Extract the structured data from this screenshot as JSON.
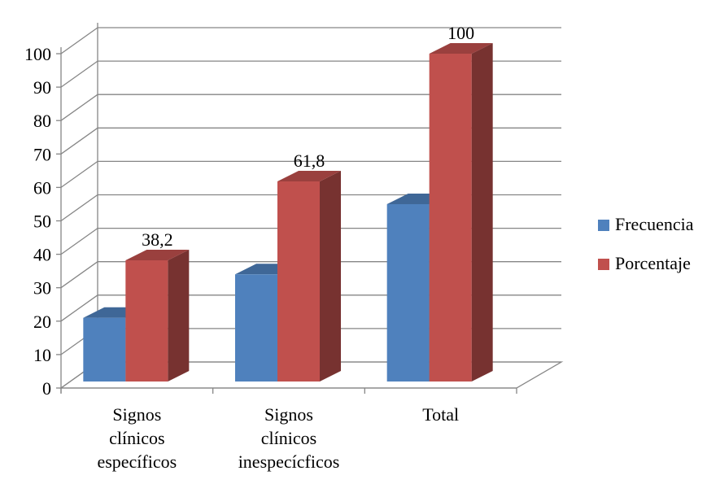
{
  "chart_data": {
    "type": "bar",
    "categories": [
      [
        "Signos",
        "clínicos",
        "específicos"
      ],
      [
        "Signos",
        "clínicos",
        "inespecícficos"
      ],
      [
        "Total"
      ]
    ],
    "series": [
      {
        "name": "Frecuencia",
        "values": [
          21,
          34,
          55
        ],
        "color": "#4f81bd"
      },
      {
        "name": "Porcentaje",
        "values": [
          38.2,
          61.8,
          100
        ],
        "color": "#c0504d"
      }
    ],
    "data_labels": [
      "38,2",
      "61,8",
      "100"
    ],
    "ylim": [
      0,
      100
    ],
    "yticks": [
      "0",
      "10",
      "20",
      "30",
      "40",
      "50",
      "60",
      "70",
      "80",
      "90",
      "100"
    ],
    "grid": true,
    "style": "3d-clustered-column",
    "legend_position": "right"
  }
}
